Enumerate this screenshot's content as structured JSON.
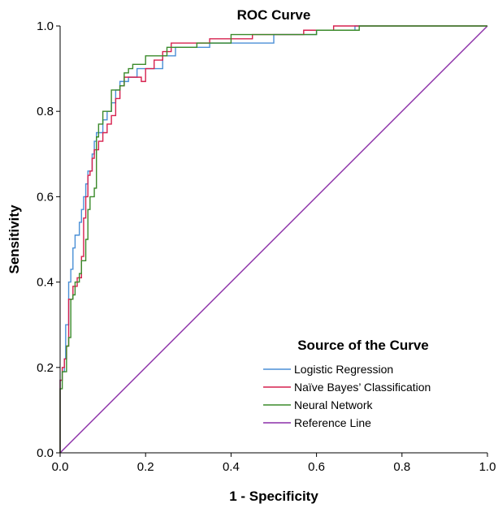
{
  "chart_data": {
    "type": "line",
    "title": "ROC Curve",
    "xlabel": "1 - Specificity",
    "ylabel": "Sensitivity",
    "xlim": [
      0,
      1
    ],
    "ylim": [
      0,
      1
    ],
    "x_ticks": [
      "0.0",
      "0.2",
      "0.4",
      "0.6",
      "0.8",
      "1.0"
    ],
    "y_ticks": [
      "0.0",
      "0.2",
      "0.4",
      "0.6",
      "0.8",
      "1.0"
    ],
    "grid": false,
    "legend": {
      "title": "Source of the Curve",
      "position": "bottom-right"
    },
    "series": [
      {
        "name": "Logistic Regression",
        "color": "#4a8fd6",
        "points": [
          [
            0,
            0
          ],
          [
            0,
            0.17
          ],
          [
            0.005,
            0.17
          ],
          [
            0.005,
            0.19
          ],
          [
            0.01,
            0.19
          ],
          [
            0.01,
            0.22
          ],
          [
            0.013,
            0.22
          ],
          [
            0.013,
            0.3
          ],
          [
            0.02,
            0.3
          ],
          [
            0.02,
            0.4
          ],
          [
            0.025,
            0.4
          ],
          [
            0.025,
            0.43
          ],
          [
            0.03,
            0.43
          ],
          [
            0.03,
            0.48
          ],
          [
            0.035,
            0.48
          ],
          [
            0.035,
            0.51
          ],
          [
            0.045,
            0.51
          ],
          [
            0.045,
            0.54
          ],
          [
            0.05,
            0.54
          ],
          [
            0.05,
            0.57
          ],
          [
            0.055,
            0.57
          ],
          [
            0.055,
            0.6
          ],
          [
            0.06,
            0.6
          ],
          [
            0.06,
            0.63
          ],
          [
            0.065,
            0.63
          ],
          [
            0.065,
            0.66
          ],
          [
            0.075,
            0.66
          ],
          [
            0.075,
            0.7
          ],
          [
            0.08,
            0.7
          ],
          [
            0.08,
            0.73
          ],
          [
            0.085,
            0.73
          ],
          [
            0.085,
            0.75
          ],
          [
            0.1,
            0.75
          ],
          [
            0.1,
            0.78
          ],
          [
            0.11,
            0.78
          ],
          [
            0.11,
            0.8
          ],
          [
            0.12,
            0.8
          ],
          [
            0.12,
            0.82
          ],
          [
            0.13,
            0.82
          ],
          [
            0.13,
            0.85
          ],
          [
            0.14,
            0.85
          ],
          [
            0.14,
            0.87
          ],
          [
            0.16,
            0.87
          ],
          [
            0.16,
            0.88
          ],
          [
            0.18,
            0.88
          ],
          [
            0.18,
            0.9
          ],
          [
            0.24,
            0.9
          ],
          [
            0.24,
            0.93
          ],
          [
            0.27,
            0.93
          ],
          [
            0.27,
            0.95
          ],
          [
            0.35,
            0.95
          ],
          [
            0.35,
            0.96
          ],
          [
            0.5,
            0.96
          ],
          [
            0.5,
            0.98
          ],
          [
            0.6,
            0.98
          ],
          [
            0.6,
            0.99
          ],
          [
            0.69,
            0.99
          ],
          [
            0.69,
            1
          ],
          [
            1,
            1
          ]
        ]
      },
      {
        "name": "Naïve Bayes’ Classification",
        "color": "#d6204e",
        "points": [
          [
            0,
            0
          ],
          [
            0,
            0.17
          ],
          [
            0.005,
            0.17
          ],
          [
            0.005,
            0.2
          ],
          [
            0.01,
            0.2
          ],
          [
            0.01,
            0.22
          ],
          [
            0.015,
            0.22
          ],
          [
            0.015,
            0.25
          ],
          [
            0.02,
            0.25
          ],
          [
            0.02,
            0.36
          ],
          [
            0.03,
            0.36
          ],
          [
            0.03,
            0.39
          ],
          [
            0.04,
            0.39
          ],
          [
            0.04,
            0.41
          ],
          [
            0.05,
            0.41
          ],
          [
            0.05,
            0.46
          ],
          [
            0.055,
            0.46
          ],
          [
            0.055,
            0.55
          ],
          [
            0.06,
            0.55
          ],
          [
            0.06,
            0.6
          ],
          [
            0.065,
            0.6
          ],
          [
            0.065,
            0.65
          ],
          [
            0.07,
            0.65
          ],
          [
            0.07,
            0.66
          ],
          [
            0.075,
            0.66
          ],
          [
            0.075,
            0.69
          ],
          [
            0.08,
            0.69
          ],
          [
            0.08,
            0.71
          ],
          [
            0.09,
            0.71
          ],
          [
            0.09,
            0.73
          ],
          [
            0.1,
            0.73
          ],
          [
            0.1,
            0.75
          ],
          [
            0.11,
            0.75
          ],
          [
            0.11,
            0.77
          ],
          [
            0.12,
            0.77
          ],
          [
            0.12,
            0.79
          ],
          [
            0.13,
            0.79
          ],
          [
            0.13,
            0.83
          ],
          [
            0.14,
            0.83
          ],
          [
            0.14,
            0.86
          ],
          [
            0.15,
            0.86
          ],
          [
            0.15,
            0.88
          ],
          [
            0.19,
            0.88
          ],
          [
            0.19,
            0.87
          ],
          [
            0.2,
            0.87
          ],
          [
            0.2,
            0.9
          ],
          [
            0.22,
            0.9
          ],
          [
            0.22,
            0.92
          ],
          [
            0.24,
            0.92
          ],
          [
            0.24,
            0.94
          ],
          [
            0.26,
            0.94
          ],
          [
            0.26,
            0.96
          ],
          [
            0.35,
            0.96
          ],
          [
            0.35,
            0.97
          ],
          [
            0.45,
            0.97
          ],
          [
            0.45,
            0.98
          ],
          [
            0.57,
            0.98
          ],
          [
            0.57,
            0.99
          ],
          [
            0.64,
            0.99
          ],
          [
            0.64,
            1
          ],
          [
            1,
            1
          ]
        ]
      },
      {
        "name": "Neural Network",
        "color": "#3a8a2a",
        "points": [
          [
            0,
            0
          ],
          [
            0,
            0.15
          ],
          [
            0.005,
            0.15
          ],
          [
            0.005,
            0.19
          ],
          [
            0.015,
            0.19
          ],
          [
            0.015,
            0.25
          ],
          [
            0.02,
            0.25
          ],
          [
            0.02,
            0.27
          ],
          [
            0.025,
            0.27
          ],
          [
            0.025,
            0.36
          ],
          [
            0.03,
            0.36
          ],
          [
            0.03,
            0.37
          ],
          [
            0.035,
            0.37
          ],
          [
            0.035,
            0.4
          ],
          [
            0.045,
            0.4
          ],
          [
            0.045,
            0.42
          ],
          [
            0.05,
            0.42
          ],
          [
            0.05,
            0.45
          ],
          [
            0.06,
            0.45
          ],
          [
            0.06,
            0.5
          ],
          [
            0.065,
            0.5
          ],
          [
            0.065,
            0.57
          ],
          [
            0.07,
            0.57
          ],
          [
            0.07,
            0.6
          ],
          [
            0.08,
            0.6
          ],
          [
            0.08,
            0.62
          ],
          [
            0.085,
            0.62
          ],
          [
            0.085,
            0.74
          ],
          [
            0.09,
            0.74
          ],
          [
            0.09,
            0.77
          ],
          [
            0.1,
            0.77
          ],
          [
            0.1,
            0.8
          ],
          [
            0.12,
            0.8
          ],
          [
            0.12,
            0.85
          ],
          [
            0.14,
            0.85
          ],
          [
            0.14,
            0.86
          ],
          [
            0.15,
            0.86
          ],
          [
            0.15,
            0.89
          ],
          [
            0.16,
            0.89
          ],
          [
            0.16,
            0.9
          ],
          [
            0.17,
            0.9
          ],
          [
            0.17,
            0.91
          ],
          [
            0.2,
            0.91
          ],
          [
            0.2,
            0.93
          ],
          [
            0.25,
            0.93
          ],
          [
            0.25,
            0.95
          ],
          [
            0.32,
            0.95
          ],
          [
            0.32,
            0.96
          ],
          [
            0.4,
            0.96
          ],
          [
            0.4,
            0.98
          ],
          [
            0.6,
            0.98
          ],
          [
            0.6,
            0.99
          ],
          [
            0.7,
            0.99
          ],
          [
            0.7,
            1
          ],
          [
            1,
            1
          ]
        ]
      },
      {
        "name": "Reference Line",
        "color": "#8b2fa8",
        "points": [
          [
            0,
            0
          ],
          [
            1,
            1
          ]
        ]
      }
    ]
  }
}
